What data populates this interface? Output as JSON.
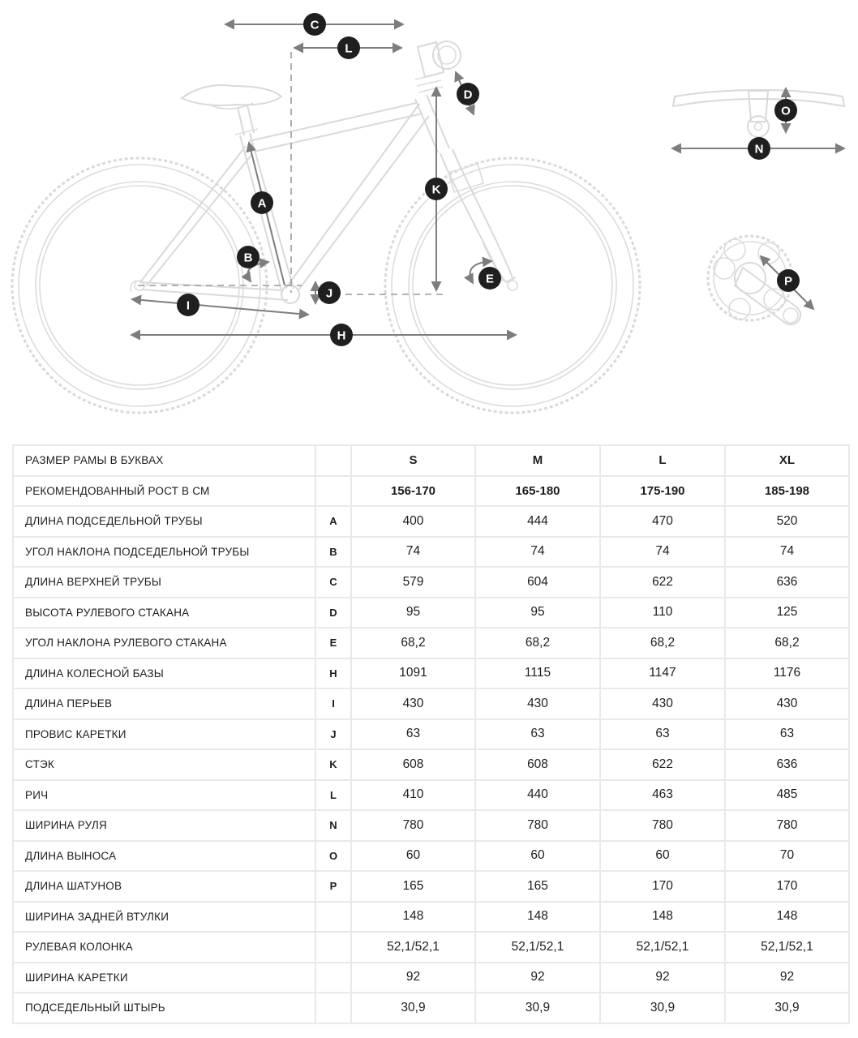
{
  "diagram": {
    "markers": {
      "A": "A",
      "B": "B",
      "C": "C",
      "D": "D",
      "E": "E",
      "H": "H",
      "I": "I",
      "J": "J",
      "K": "K",
      "L": "L",
      "N": "N",
      "O": "O",
      "P": "P"
    }
  },
  "table": {
    "size_columns": [
      "S",
      "M",
      "L",
      "XL"
    ],
    "rows": [
      {
        "label": "РАЗМЕР РАМЫ В БУКВАХ",
        "letter": "",
        "values": [
          "S",
          "M",
          "L",
          "XL"
        ],
        "bold": true
      },
      {
        "label": "РЕКОМЕНДОВАННЫЙ РОСТ В СМ",
        "letter": "",
        "values": [
          "156-170",
          "165-180",
          "175-190",
          "185-198"
        ],
        "bold": true
      },
      {
        "label": "ДЛИНА ПОДСЕДЕЛЬНОЙ ТРУБЫ",
        "letter": "A",
        "values": [
          "400",
          "444",
          "470",
          "520"
        ],
        "bold": false
      },
      {
        "label": "УГОЛ НАКЛОНА ПОДСЕДЕЛЬНОЙ ТРУБЫ",
        "letter": "B",
        "values": [
          "74",
          "74",
          "74",
          "74"
        ],
        "bold": false
      },
      {
        "label": "ДЛИНА ВЕРХНЕЙ ТРУБЫ",
        "letter": "C",
        "values": [
          "579",
          "604",
          "622",
          "636"
        ],
        "bold": false
      },
      {
        "label": "ВЫСОТА РУЛЕВОГО СТАКАНА",
        "letter": "D",
        "values": [
          "95",
          "95",
          "110",
          "125"
        ],
        "bold": false
      },
      {
        "label": "УГОЛ НАКЛОНА РУЛЕВОГО СТАКАНА",
        "letter": "E",
        "values": [
          "68,2",
          "68,2",
          "68,2",
          "68,2"
        ],
        "bold": false
      },
      {
        "label": "ДЛИНА КОЛЕСНОЙ БАЗЫ",
        "letter": "H",
        "values": [
          "1091",
          "1115",
          "1147",
          "1176"
        ],
        "bold": false
      },
      {
        "label": "ДЛИНА ПЕРЬЕВ",
        "letter": "I",
        "values": [
          "430",
          "430",
          "430",
          "430"
        ],
        "bold": false
      },
      {
        "label": "ПРОВИС КАРЕТКИ",
        "letter": "J",
        "values": [
          "63",
          "63",
          "63",
          "63"
        ],
        "bold": false
      },
      {
        "label": "СТЭК",
        "letter": "K",
        "values": [
          "608",
          "608",
          "622",
          "636"
        ],
        "bold": false
      },
      {
        "label": "РИЧ",
        "letter": "L",
        "values": [
          "410",
          "440",
          "463",
          "485"
        ],
        "bold": false
      },
      {
        "label": "ШИРИНА РУЛЯ",
        "letter": "N",
        "values": [
          "780",
          "780",
          "780",
          "780"
        ],
        "bold": false
      },
      {
        "label": "ДЛИНА ВЫНОСА",
        "letter": "O",
        "values": [
          "60",
          "60",
          "60",
          "70"
        ],
        "bold": false
      },
      {
        "label": "ДЛИНА ШАТУНОВ",
        "letter": "P",
        "values": [
          "165",
          "165",
          "170",
          "170"
        ],
        "bold": false
      },
      {
        "label": "ШИРИНА ЗАДНЕЙ ВТУЛКИ",
        "letter": "",
        "values": [
          "148",
          "148",
          "148",
          "148"
        ],
        "bold": false
      },
      {
        "label": "РУЛЕВАЯ КОЛОНКА",
        "letter": "",
        "values": [
          "52,1/52,1",
          "52,1/52,1",
          "52,1/52,1",
          "52,1/52,1"
        ],
        "bold": false
      },
      {
        "label": "ШИРИНА КАРЕТКИ",
        "letter": "",
        "values": [
          "92",
          "92",
          "92",
          "92"
        ],
        "bold": false
      },
      {
        "label": "ПОДСЕДЕЛЬНЫЙ ШТЫРЬ",
        "letter": "",
        "values": [
          "30,9",
          "30,9",
          "30,9",
          "30,9"
        ],
        "bold": false
      }
    ]
  },
  "colors": {
    "badge": "#1f1f1f",
    "badge_text": "#ffffff",
    "arrow": "#7d7d7d",
    "bike_outline": "#d9d9d9",
    "table_border": "#e9e9e9",
    "text": "#1d1d1d"
  }
}
